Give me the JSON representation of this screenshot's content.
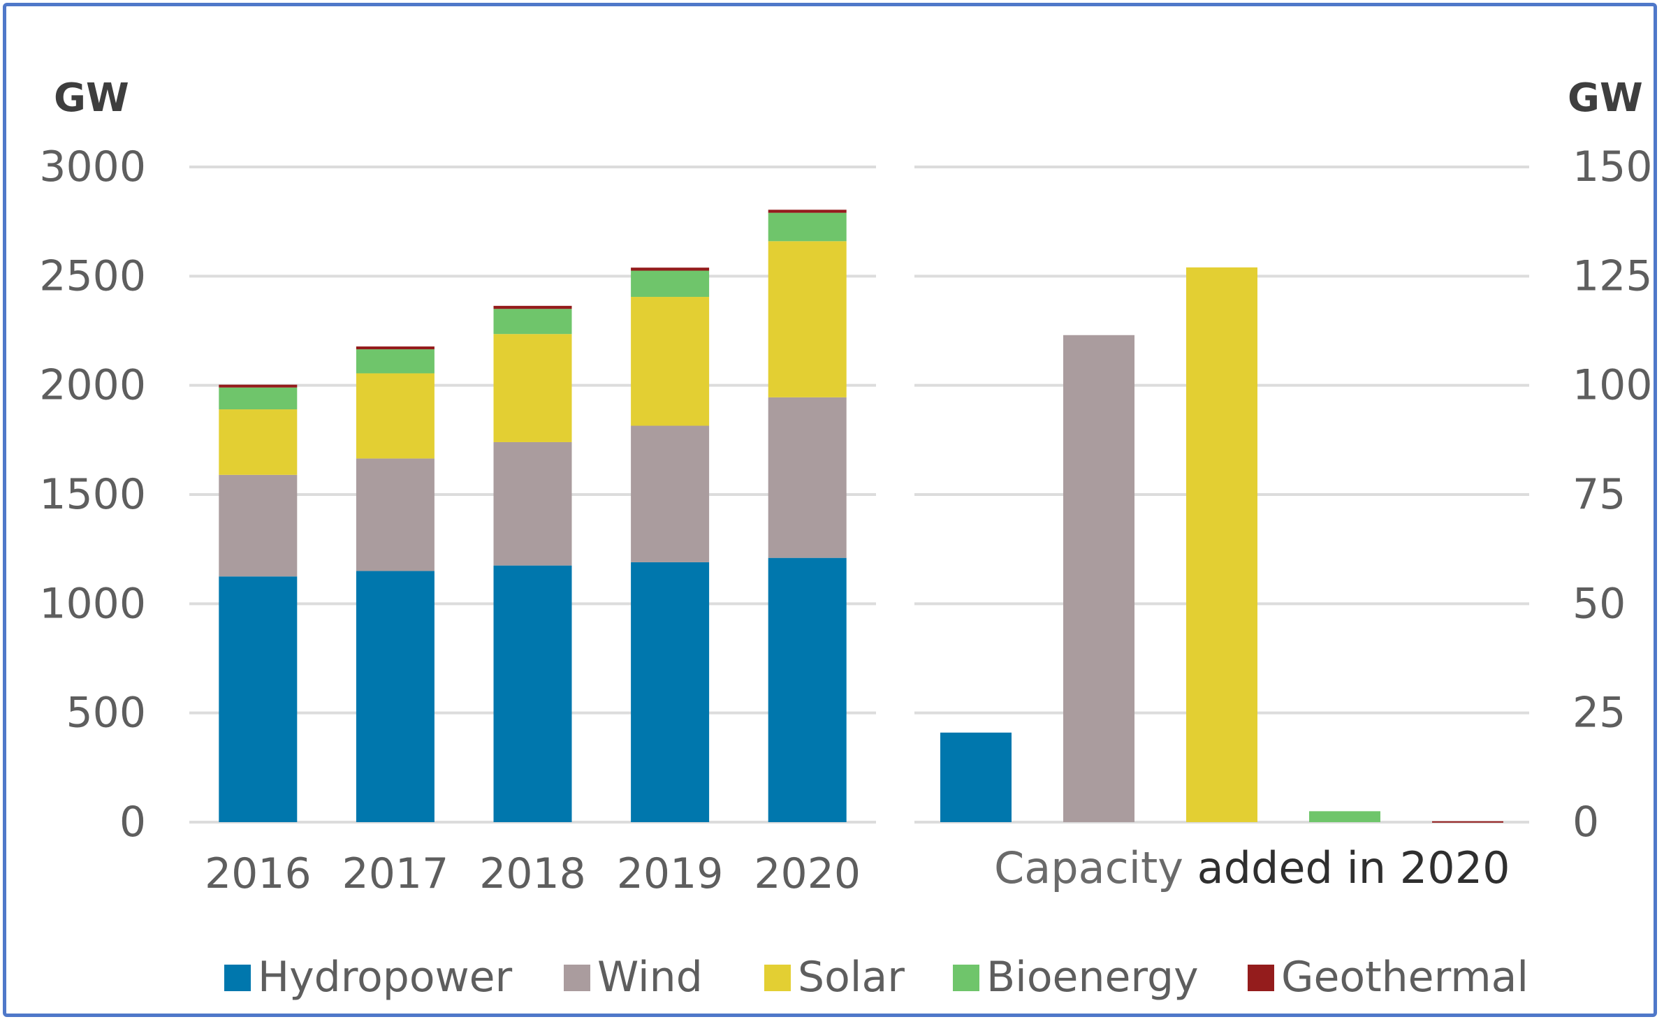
{
  "colors": {
    "Hydropower": "#0077ad",
    "Wind": "#aa9c9e",
    "Solar": "#e3cf33",
    "Bioenergy": "#6fc56b",
    "Geothermal": "#941c1c",
    "grid": "#dcdcdc"
  },
  "chart_data": [
    {
      "type": "bar",
      "stacked": true,
      "categories": [
        "2016",
        "2017",
        "2018",
        "2019",
        "2020"
      ],
      "series": [
        {
          "name": "Hydropower",
          "values": [
            1125,
            1150,
            1175,
            1190,
            1210
          ]
        },
        {
          "name": "Wind",
          "values": [
            465,
            515,
            565,
            625,
            735
          ]
        },
        {
          "name": "Solar",
          "values": [
            300,
            390,
            495,
            590,
            715
          ]
        },
        {
          "name": "Bioenergy",
          "values": [
            100,
            110,
            115,
            120,
            130
          ]
        },
        {
          "name": "Geothermal",
          "values": [
            13,
            13,
            14,
            14,
            14
          ]
        }
      ],
      "ylabel": "GW",
      "ylim": [
        0,
        3000
      ],
      "yticks": [
        "0",
        "500",
        "1000",
        "1500",
        "2000",
        "2500",
        "3000"
      ],
      "grid": true
    },
    {
      "type": "bar",
      "categories": [
        "Hydropower",
        "Wind",
        "Solar",
        "Bioenergy",
        "Geothermal"
      ],
      "values": [
        20.5,
        111.5,
        127,
        2.5,
        0.2
      ],
      "xlabel_parts": [
        "Capacity ",
        "added in 2020"
      ],
      "ylabel": "GW",
      "ylim": [
        0,
        150
      ],
      "yticks": [
        "0",
        "25",
        "50",
        "75",
        "100",
        "125",
        "150"
      ],
      "grid": true
    }
  ],
  "legend": [
    "Hydropower",
    "Wind",
    "Solar",
    "Bioenergy",
    "Geothermal"
  ]
}
